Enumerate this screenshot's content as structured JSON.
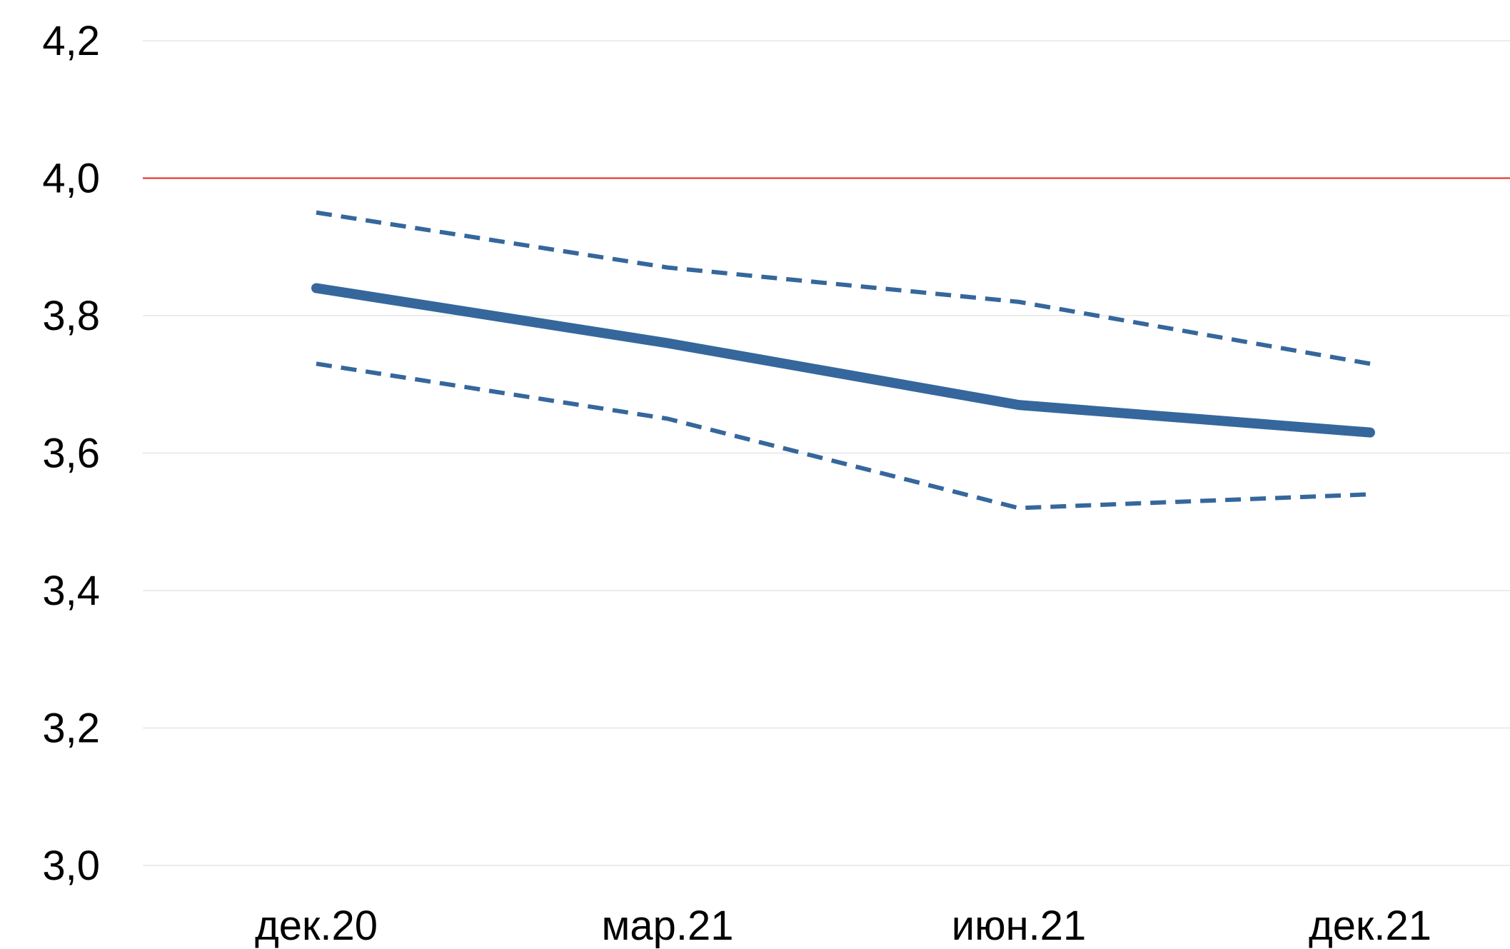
{
  "chart_data": {
    "type": "line",
    "title": "",
    "xlabel": "",
    "ylabel": "",
    "categories": [
      "дек.20",
      "мар.21",
      "июн.21",
      "дек.21"
    ],
    "x_positions": [
      0,
      1,
      2,
      3
    ],
    "ylim": [
      3.0,
      4.2
    ],
    "yticks": [
      "3,0",
      "3,2",
      "3,4",
      "3,6",
      "3,8",
      "4,0",
      "4,2"
    ],
    "ytick_values": [
      3.0,
      3.2,
      3.4,
      3.6,
      3.8,
      4.0,
      4.2
    ],
    "grid": true,
    "legend": "none",
    "reference_line": {
      "value": 4.0,
      "color": "#e8211b"
    },
    "series": [
      {
        "style": "solid",
        "color": "#35679c",
        "values": [
          3.84,
          3.76,
          3.67,
          3.63
        ]
      },
      {
        "style": "dashed",
        "color": "#35679c",
        "values": [
          3.95,
          3.87,
          3.82,
          3.73
        ]
      },
      {
        "style": "dashed",
        "color": "#35679c",
        "values": [
          3.73,
          3.65,
          3.52,
          3.54
        ]
      }
    ]
  }
}
